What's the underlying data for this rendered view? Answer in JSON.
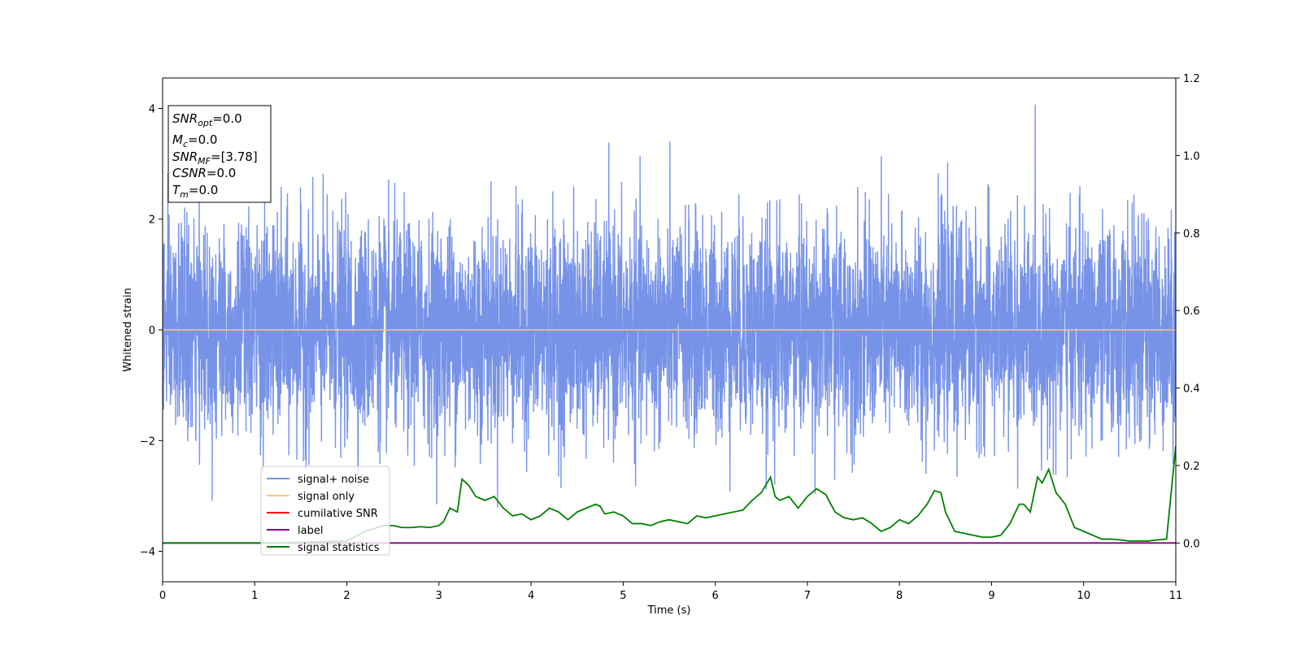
{
  "chart_data": {
    "type": "line",
    "xlabel": "Time (s)",
    "ylabel": "Whitened strain",
    "xlim": [
      0,
      11
    ],
    "ylim": [
      -4.55,
      4.55
    ],
    "y2lim": [
      -0.1,
      1.2
    ],
    "xticks": [
      "0",
      "1",
      "2",
      "3",
      "4",
      "5",
      "6",
      "7",
      "8",
      "9",
      "10",
      "11"
    ],
    "yticks": [
      "-4",
      "-2",
      "0",
      "2",
      "4"
    ],
    "y2ticks": [
      "0.0",
      "0.2",
      "0.4",
      "0.6",
      "0.8",
      "1.0",
      "1.2"
    ],
    "legend_position": "lower-left",
    "info_box": {
      "snr_opt": "=0.0",
      "mc": "=0.0",
      "snr_mf": "=[3.78]",
      "csnr": "=0.0",
      "tm": "=0.0"
    },
    "series": [
      {
        "name": "signal+ noise",
        "color": "#7793e8",
        "axis": "left",
        "kind": "noise",
        "duration": 11,
        "mean": 0.0,
        "std": 0.95,
        "max": 4.15,
        "min": -4.15
      },
      {
        "name": "signal only",
        "color": "#ffc57f",
        "axis": "left",
        "x": [
          0,
          11
        ],
        "y": [
          0,
          0
        ]
      },
      {
        "name": "cumilative SNR",
        "color": "#ff0000",
        "axis": "right",
        "x": [
          0,
          11
        ],
        "y": [
          0,
          0
        ]
      },
      {
        "name": "label",
        "color": "#800080",
        "axis": "right",
        "x": [
          0,
          11
        ],
        "y": [
          0,
          0
        ]
      },
      {
        "name": "signal statistics",
        "color": "#008000",
        "axis": "right",
        "x": [
          0,
          1.2,
          2.0,
          2.2,
          2.4,
          2.5,
          2.6,
          2.7,
          2.8,
          2.9,
          3.0,
          3.05,
          3.12,
          3.2,
          3.25,
          3.32,
          3.4,
          3.5,
          3.6,
          3.7,
          3.8,
          3.9,
          4.0,
          4.1,
          4.2,
          4.3,
          4.4,
          4.5,
          4.6,
          4.7,
          4.75,
          4.8,
          4.9,
          5.0,
          5.1,
          5.2,
          5.3,
          5.4,
          5.5,
          5.6,
          5.7,
          5.8,
          5.9,
          6.0,
          6.1,
          6.2,
          6.3,
          6.4,
          6.5,
          6.6,
          6.65,
          6.7,
          6.8,
          6.9,
          7.0,
          7.1,
          7.2,
          7.3,
          7.4,
          7.5,
          7.6,
          7.7,
          7.8,
          7.9,
          8.0,
          8.1,
          8.2,
          8.3,
          8.38,
          8.45,
          8.5,
          8.6,
          8.7,
          8.8,
          8.9,
          9.0,
          9.1,
          9.2,
          9.3,
          9.35,
          9.42,
          9.5,
          9.55,
          9.62,
          9.7,
          9.8,
          9.9,
          10.0,
          10.1,
          10.2,
          10.3,
          10.4,
          10.5,
          10.6,
          10.7,
          10.8,
          10.9,
          11.0
        ],
        "y": [
          0.0,
          0.0,
          0.005,
          0.03,
          0.045,
          0.045,
          0.04,
          0.04,
          0.042,
          0.04,
          0.045,
          0.055,
          0.09,
          0.08,
          0.165,
          0.15,
          0.12,
          0.11,
          0.12,
          0.09,
          0.07,
          0.075,
          0.06,
          0.07,
          0.09,
          0.08,
          0.06,
          0.08,
          0.09,
          0.1,
          0.095,
          0.075,
          0.08,
          0.07,
          0.05,
          0.05,
          0.045,
          0.055,
          0.06,
          0.055,
          0.05,
          0.07,
          0.065,
          0.07,
          0.075,
          0.08,
          0.085,
          0.11,
          0.13,
          0.17,
          0.12,
          0.11,
          0.12,
          0.09,
          0.12,
          0.14,
          0.125,
          0.08,
          0.065,
          0.06,
          0.065,
          0.05,
          0.03,
          0.04,
          0.06,
          0.05,
          0.07,
          0.1,
          0.135,
          0.13,
          0.08,
          0.03,
          0.025,
          0.02,
          0.015,
          0.015,
          0.02,
          0.05,
          0.1,
          0.1,
          0.08,
          0.17,
          0.155,
          0.19,
          0.13,
          0.1,
          0.04,
          0.03,
          0.02,
          0.01,
          0.01,
          0.008,
          0.005,
          0.005,
          0.005,
          0.008,
          0.01,
          0.25
        ]
      }
    ]
  }
}
